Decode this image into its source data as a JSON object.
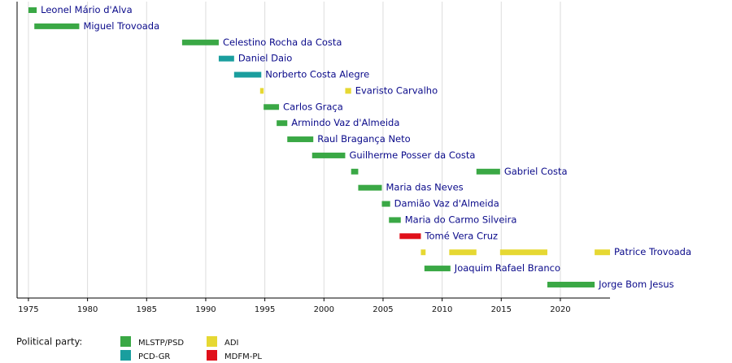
{
  "chart_data": {
    "type": "timeline",
    "parties": [
      {
        "name": "MLSTP/PSD",
        "color": "#3aa845"
      },
      {
        "name": "PCD-GR",
        "color": "#1a9e9e"
      },
      {
        "name": "ADI",
        "color": "#e6d833"
      },
      {
        "name": "MDFM-PL",
        "color": "#e0101a"
      }
    ],
    "legend_title": "Political party:",
    "rows": [
      {
        "label": "Leonel Mário d'Alva",
        "party": 0,
        "spans": [
          [
            1975.0,
            1975.7
          ]
        ]
      },
      {
        "label": "Miguel Trovoada",
        "party": 0,
        "spans": [
          [
            1975.5,
            1979.3
          ]
        ]
      },
      {
        "label": "Celestino Rocha da Costa",
        "party": 0,
        "spans": [
          [
            1988.0,
            1991.1
          ]
        ]
      },
      {
        "label": "Daniel Daio",
        "party": 1,
        "spans": [
          [
            1991.1,
            1992.4
          ]
        ]
      },
      {
        "label": "Norberto Costa Alegre",
        "party": 1,
        "spans": [
          [
            1992.4,
            1994.7
          ]
        ]
      },
      {
        "label": "Evaristo Carvalho",
        "party": 2,
        "spans": [
          [
            1994.6,
            1994.9
          ],
          [
            2001.8,
            2002.3
          ]
        ]
      },
      {
        "label": "Carlos Graça",
        "party": 0,
        "spans": [
          [
            1994.9,
            1996.2
          ]
        ]
      },
      {
        "label": "Armindo Vaz d'Almeida",
        "party": 0,
        "spans": [
          [
            1996.0,
            1996.9
          ]
        ]
      },
      {
        "label": "Raul Bragança Neto",
        "party": 0,
        "spans": [
          [
            1996.9,
            1999.1
          ]
        ]
      },
      {
        "label": "Guilherme Posser da Costa",
        "party": 0,
        "spans": [
          [
            1999.0,
            2001.8
          ]
        ]
      },
      {
        "label": "Gabriel Costa",
        "party": 0,
        "spans": [
          [
            2002.3,
            2002.9
          ],
          [
            2012.9,
            2014.9
          ]
        ]
      },
      {
        "label": "Maria das Neves",
        "party": 0,
        "spans": [
          [
            2002.9,
            2004.9
          ]
        ]
      },
      {
        "label": "Damião Vaz d'Almeida",
        "party": 0,
        "spans": [
          [
            2004.9,
            2005.6
          ]
        ]
      },
      {
        "label": "Maria do Carmo Silveira",
        "party": 0,
        "spans": [
          [
            2005.5,
            2006.5
          ]
        ]
      },
      {
        "label": "Tomé Vera Cruz",
        "party": 3,
        "spans": [
          [
            2006.4,
            2008.2
          ]
        ]
      },
      {
        "label": "Patrice Trovoada",
        "party": 2,
        "spans": [
          [
            2008.2,
            2008.6
          ],
          [
            2010.6,
            2012.9
          ],
          [
            2014.9,
            2018.9
          ],
          [
            2022.9,
            2024.2
          ]
        ]
      },
      {
        "label": "Joaquim Rafael Branco",
        "party": 0,
        "spans": [
          [
            2008.5,
            2010.7
          ]
        ]
      },
      {
        "label": "Jorge Bom Jesus",
        "party": 0,
        "spans": [
          [
            2018.9,
            2022.9
          ]
        ]
      }
    ],
    "xlim": [
      1974.04,
      2024.2
    ],
    "xticks": [
      1975,
      1980,
      1985,
      1990,
      1995,
      2000,
      2005,
      2010,
      2015,
      2020
    ],
    "grid": true
  }
}
